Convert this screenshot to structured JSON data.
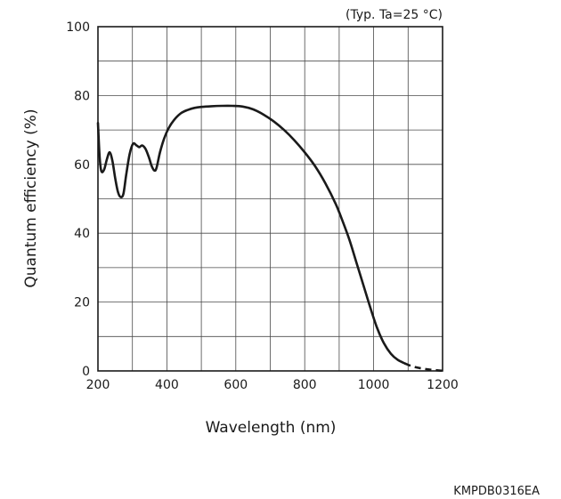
{
  "chart_data": {
    "type": "line",
    "note": "(Typ. Ta=25 °C)",
    "xlabel": "Wavelength (nm)",
    "ylabel": "Quantum efficiency (%)",
    "figure_code": "KMPDB0316EA",
    "xlim": [
      200,
      1200
    ],
    "ylim": [
      0,
      100
    ],
    "x_ticks": [
      200,
      400,
      600,
      800,
      1000,
      1200
    ],
    "y_ticks": [
      0,
      20,
      40,
      60,
      80,
      100
    ],
    "x_minor_step": 100,
    "y_minor_step": 10,
    "grid": true,
    "series": [
      {
        "style": "solid",
        "points": [
          [
            200,
            72
          ],
          [
            205,
            62
          ],
          [
            210,
            58
          ],
          [
            218,
            58.5
          ],
          [
            226,
            61.5
          ],
          [
            234,
            63.5
          ],
          [
            242,
            61
          ],
          [
            250,
            56
          ],
          [
            258,
            52
          ],
          [
            266,
            50.5
          ],
          [
            274,
            51.5
          ],
          [
            282,
            57
          ],
          [
            292,
            63
          ],
          [
            302,
            66
          ],
          [
            312,
            65.5
          ],
          [
            320,
            65
          ],
          [
            328,
            65.5
          ],
          [
            338,
            64.5
          ],
          [
            348,
            62
          ],
          [
            356,
            59.5
          ],
          [
            364,
            58.2
          ],
          [
            370,
            59
          ],
          [
            380,
            63.5
          ],
          [
            392,
            67.5
          ],
          [
            405,
            70.5
          ],
          [
            420,
            72.8
          ],
          [
            440,
            74.8
          ],
          [
            460,
            75.8
          ],
          [
            480,
            76.4
          ],
          [
            500,
            76.7
          ],
          [
            530,
            76.9
          ],
          [
            560,
            77
          ],
          [
            590,
            77
          ],
          [
            620,
            76.8
          ],
          [
            650,
            76
          ],
          [
            680,
            74.5
          ],
          [
            710,
            72.5
          ],
          [
            740,
            70
          ],
          [
            770,
            67
          ],
          [
            800,
            63.5
          ],
          [
            830,
            59.5
          ],
          [
            860,
            54.5
          ],
          [
            890,
            48.5
          ],
          [
            910,
            43.5
          ],
          [
            930,
            38
          ],
          [
            950,
            31.5
          ],
          [
            970,
            25
          ],
          [
            990,
            18.5
          ],
          [
            1010,
            12.5
          ],
          [
            1030,
            8
          ],
          [
            1050,
            5
          ],
          [
            1070,
            3.2
          ],
          [
            1090,
            2.2
          ]
        ]
      },
      {
        "style": "dashed",
        "points": [
          [
            1090,
            2.2
          ],
          [
            1110,
            1.4
          ],
          [
            1130,
            0.9
          ],
          [
            1150,
            0.55
          ],
          [
            1170,
            0.3
          ],
          [
            1190,
            0.12
          ],
          [
            1200,
            0.05
          ]
        ]
      }
    ]
  }
}
